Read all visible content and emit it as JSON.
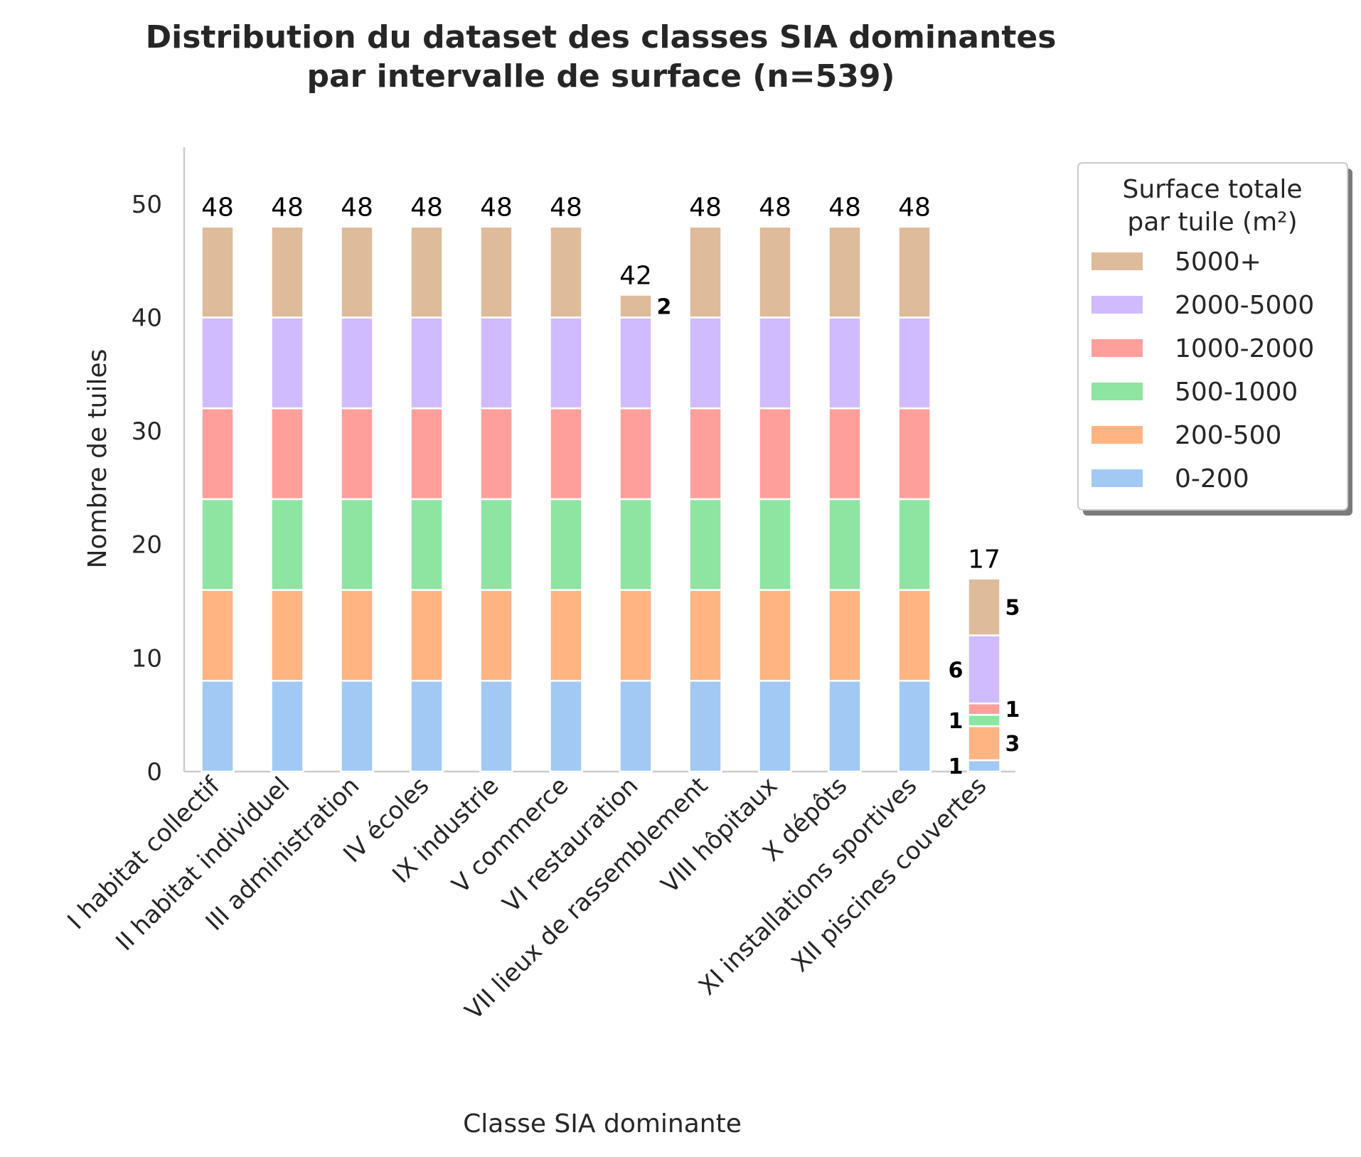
{
  "chart_data": {
    "type": "bar",
    "stacked": true,
    "title_line1": "Distribution du dataset des classes SIA dominantes",
    "title_line2": "par intervalle de surface (n=539)",
    "xlabel": "Classe SIA dominante",
    "ylabel": "Nombre de tuiles",
    "ylim": [
      0,
      55
    ],
    "yticks": [
      0,
      10,
      20,
      30,
      40,
      50
    ],
    "grid": false,
    "legend_placement": "outside-right",
    "legend_title_line1": "Surface totale",
    "legend_title_line2": "par tuile (m²)",
    "categories": [
      "I habitat collectif",
      "II habitat individuel",
      "III administration",
      "IV écoles",
      "IX industrie",
      "V commerce",
      "VI restauration",
      "VII lieux de rassemblement",
      "VIII hôpitaux",
      "X dépôts",
      "XI installations sportives",
      "XII piscines couvertes"
    ],
    "series": [
      {
        "name": "0-200",
        "color": "#a1c9f4",
        "values": [
          8,
          8,
          8,
          8,
          8,
          8,
          8,
          8,
          8,
          8,
          8,
          1
        ]
      },
      {
        "name": "200-500",
        "color": "#ffb482",
        "values": [
          8,
          8,
          8,
          8,
          8,
          8,
          8,
          8,
          8,
          8,
          8,
          3
        ]
      },
      {
        "name": "500-1000",
        "color": "#8de5a1",
        "values": [
          8,
          8,
          8,
          8,
          8,
          8,
          8,
          8,
          8,
          8,
          8,
          1
        ]
      },
      {
        "name": "1000-2000",
        "color": "#ff9f9b",
        "values": [
          8,
          8,
          8,
          8,
          8,
          8,
          8,
          8,
          8,
          8,
          8,
          1
        ]
      },
      {
        "name": "2000-5000",
        "color": "#d0bbff",
        "values": [
          8,
          8,
          8,
          8,
          8,
          8,
          8,
          8,
          8,
          8,
          8,
          6
        ]
      },
      {
        "name": "5000+",
        "color": "#debb9b",
        "values": [
          8,
          8,
          8,
          8,
          8,
          8,
          2,
          8,
          8,
          8,
          8,
          5
        ]
      }
    ],
    "totals": [
      48,
      48,
      48,
      48,
      48,
      48,
      42,
      48,
      48,
      48,
      48,
      17
    ],
    "segment_labels": [
      {
        "category": 6,
        "series": 5,
        "text": "2"
      },
      {
        "category": 11,
        "series": 0,
        "text": "1"
      },
      {
        "category": 11,
        "series": 1,
        "text": "3"
      },
      {
        "category": 11,
        "series": 2,
        "text": "1"
      },
      {
        "category": 11,
        "series": 3,
        "text": "1"
      },
      {
        "category": 11,
        "series": 4,
        "text": "6"
      },
      {
        "category": 11,
        "series": 5,
        "text": "5"
      }
    ]
  }
}
